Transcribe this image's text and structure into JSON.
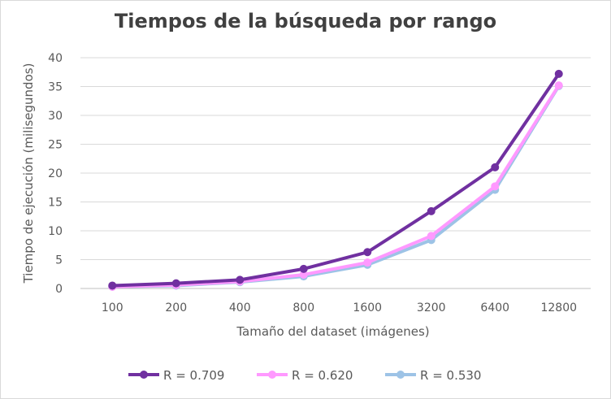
{
  "chart_data": {
    "type": "line",
    "title": "Tiempos de la búsqueda por rango",
    "xlabel": "Tamaño del dataset (imágenes)",
    "ylabel": "Tiempo de ejecución (milisegundos)",
    "categories": [
      "100",
      "200",
      "400",
      "800",
      "1600",
      "3200",
      "6400",
      "12800"
    ],
    "ylim": [
      0,
      40
    ],
    "yticks": [
      0,
      5,
      10,
      15,
      20,
      25,
      30,
      35,
      40
    ],
    "grid": true,
    "legend_position": "bottom",
    "series": [
      {
        "name": "R = 0.709",
        "color": "#7030a0",
        "values": [
          0.5,
          0.9,
          1.5,
          3.4,
          6.3,
          13.4,
          21.0,
          37.2
        ]
      },
      {
        "name": "R = 0.620",
        "color": "#ff99ff",
        "values": [
          0.3,
          0.6,
          1.2,
          2.4,
          4.5,
          9.1,
          17.7,
          35.2
        ]
      },
      {
        "name": "R = 0.530",
        "color": "#9dc3e6",
        "values": [
          0.3,
          0.5,
          1.1,
          2.1,
          4.1,
          8.4,
          17.1,
          35.1
        ]
      }
    ]
  }
}
